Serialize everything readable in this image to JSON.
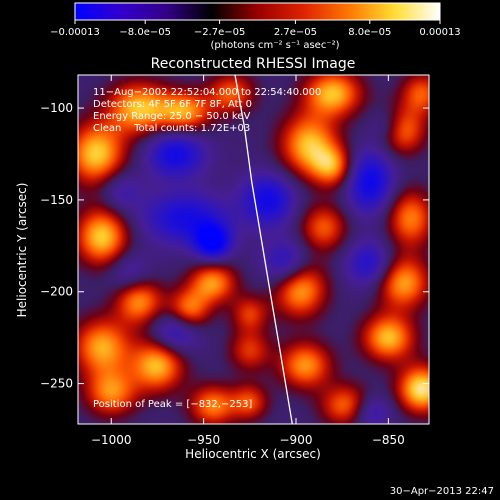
{
  "chart_data": {
    "type": "heatmap",
    "title": "Reconstructed RHESSI Image",
    "xlabel": "Heliocentric X (arcsec)",
    "ylabel": "Heliocentric Y (arcsec)",
    "xlim": [
      -1018,
      -828
    ],
    "ylim": [
      -272,
      -82
    ],
    "x_ticks": [
      -1000,
      -950,
      -900,
      -850
    ],
    "x_tick_labels": [
      "−1000",
      "−950",
      "−900",
      "−850"
    ],
    "y_ticks": [
      -100,
      -150,
      -200,
      -250
    ],
    "y_tick_labels": [
      "−100",
      "−150",
      "−200",
      "−250"
    ],
    "colorbar": {
      "range": [
        -0.00013,
        0.00013
      ],
      "ticks": [
        -0.00013,
        -8e-05,
        -2.7e-05,
        2.7e-05,
        8e-05,
        0.00013
      ],
      "tick_labels": [
        "−0.00013",
        "−8.0e−05",
        "−2.7e−05",
        "2.7e−05",
        "8.0e−05",
        "0.00013"
      ],
      "unit_label": "(photons cm⁻² s⁻¹ asec⁻²)",
      "colors": [
        "#0000ff",
        "#3300cc",
        "#330088",
        "#000000",
        "#990000",
        "#dd2200",
        "#ff7700",
        "#ffdd33",
        "#ffffff"
      ]
    },
    "annotations": [
      "11−Aug−2002 22:52:04.000 to 22:54:40.000",
      "Detectors: 4F 5F 6F 7F 8F, Att 0",
      "Energy Range: 25.0 − 50.0 keV",
      "Clean    Total counts: 1.72E+03"
    ],
    "peak_label": "Position of Peak = [−832,−253]",
    "peak": [
      -832,
      -253
    ],
    "limb_curve": {
      "color": "#ffffff",
      "points": [
        [
          -933,
          -82
        ],
        [
          -928,
          -110
        ],
        [
          -924,
          -140
        ],
        [
          -919,
          -170
        ],
        [
          -914,
          -200
        ],
        [
          -909,
          -230
        ],
        [
          -904,
          -260
        ],
        [
          -902,
          -272
        ]
      ]
    },
    "sources": [
      {
        "x": -832,
        "y": -253,
        "amp": 1.0,
        "sx": 9,
        "sy": 9
      },
      {
        "x": -850,
        "y": -225,
        "amp": 0.85,
        "sx": 10,
        "sy": 9
      },
      {
        "x": -842,
        "y": -195,
        "amp": 0.8,
        "sx": 10,
        "sy": 10
      },
      {
        "x": -838,
        "y": -160,
        "amp": 0.7,
        "sx": 9,
        "sy": 11
      },
      {
        "x": -843,
        "y": -112,
        "amp": 0.75,
        "sx": 9,
        "sy": 9
      },
      {
        "x": -832,
        "y": -92,
        "amp": 0.6,
        "sx": 8,
        "sy": 8
      },
      {
        "x": -880,
        "y": -92,
        "amp": 0.85,
        "sx": 11,
        "sy": 9
      },
      {
        "x": -893,
        "y": -120,
        "amp": 0.85,
        "sx": 11,
        "sy": 12
      },
      {
        "x": -880,
        "y": -132,
        "amp": 0.65,
        "sx": 8,
        "sy": 8
      },
      {
        "x": -885,
        "y": -165,
        "amp": 0.6,
        "sx": 9,
        "sy": 9
      },
      {
        "x": -898,
        "y": -198,
        "amp": 0.85,
        "sx": 10,
        "sy": 11
      },
      {
        "x": -895,
        "y": -240,
        "amp": 0.75,
        "sx": 10,
        "sy": 9
      },
      {
        "x": -872,
        "y": -262,
        "amp": 0.7,
        "sx": 10,
        "sy": 8
      },
      {
        "x": -925,
        "y": -232,
        "amp": 0.5,
        "sx": 8,
        "sy": 8
      },
      {
        "x": -945,
        "y": -195,
        "amp": 0.75,
        "sx": 9,
        "sy": 8
      },
      {
        "x": -958,
        "y": -210,
        "amp": 0.7,
        "sx": 8,
        "sy": 8
      },
      {
        "x": -925,
        "y": -212,
        "amp": 0.5,
        "sx": 7,
        "sy": 7
      },
      {
        "x": -985,
        "y": -205,
        "amp": 0.75,
        "sx": 9,
        "sy": 9
      },
      {
        "x": -975,
        "y": -240,
        "amp": 0.85,
        "sx": 10,
        "sy": 10
      },
      {
        "x": -1005,
        "y": -230,
        "amp": 0.8,
        "sx": 11,
        "sy": 11
      },
      {
        "x": -1000,
        "y": -255,
        "amp": 0.7,
        "sx": 10,
        "sy": 9
      },
      {
        "x": -945,
        "y": -262,
        "amp": 0.7,
        "sx": 9,
        "sy": 8
      },
      {
        "x": -925,
        "y": -260,
        "amp": 0.55,
        "sx": 7,
        "sy": 7
      },
      {
        "x": -1005,
        "y": -170,
        "amp": 0.9,
        "sx": 10,
        "sy": 11
      },
      {
        "x": -1008,
        "y": -125,
        "amp": 0.9,
        "sx": 11,
        "sy": 12
      },
      {
        "x": -985,
        "y": -100,
        "amp": 0.85,
        "sx": 12,
        "sy": 10
      },
      {
        "x": -960,
        "y": -102,
        "amp": 0.75,
        "sx": 10,
        "sy": 8
      },
      {
        "x": -935,
        "y": -92,
        "amp": 0.6,
        "sx": 9,
        "sy": 8
      },
      {
        "x": -960,
        "y": -160,
        "amp": -0.65,
        "sx": 16,
        "sy": 10
      },
      {
        "x": -945,
        "y": -173,
        "amp": -0.9,
        "sx": 7,
        "sy": 7
      },
      {
        "x": -965,
        "y": -125,
        "amp": -0.7,
        "sx": 11,
        "sy": 9
      },
      {
        "x": -915,
        "y": -150,
        "amp": -0.7,
        "sx": 10,
        "sy": 10
      },
      {
        "x": -905,
        "y": -185,
        "amp": -0.6,
        "sx": 9,
        "sy": 9
      },
      {
        "x": -860,
        "y": -140,
        "amp": -0.75,
        "sx": 9,
        "sy": 12
      },
      {
        "x": -860,
        "y": -185,
        "amp": -0.55,
        "sx": 9,
        "sy": 9
      },
      {
        "x": -965,
        "y": -222,
        "amp": -0.55,
        "sx": 9,
        "sy": 8
      },
      {
        "x": -860,
        "y": -265,
        "amp": -0.5,
        "sx": 8,
        "sy": 7
      },
      {
        "x": -850,
        "y": -110,
        "amp": -0.4,
        "sx": 7,
        "sy": 7
      },
      {
        "x": -995,
        "y": -145,
        "amp": -0.35,
        "sx": 8,
        "sy": 8
      },
      {
        "x": -990,
        "y": -190,
        "amp": -0.35,
        "sx": 8,
        "sy": 8
      }
    ]
  },
  "footer": {
    "timestamp": "30−Apr−2013 22:47"
  }
}
